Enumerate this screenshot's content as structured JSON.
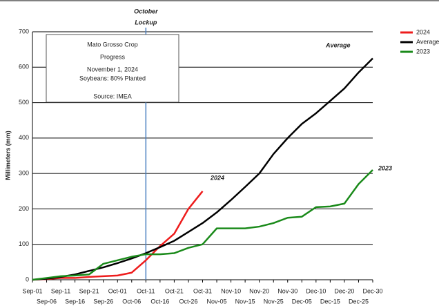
{
  "chart_data": {
    "type": "line",
    "y_label": "Millimeters (mm)",
    "categories": [
      "Sep-01",
      "Sep-06",
      "Sep-11",
      "Sep-16",
      "Sep-21",
      "Sep-26",
      "Oct-01",
      "Oct-06",
      "Oct-11",
      "Oct-16",
      "Oct-21",
      "Oct-26",
      "Oct-31",
      "Nov-05",
      "Nov-10",
      "Nov-15",
      "Nov-20",
      "Nov-25",
      "Nov-30",
      "Dec-05",
      "Dec-10",
      "Dec-15",
      "Dec-20",
      "Dec-25",
      "Dec-30"
    ],
    "series": [
      {
        "name": "2024",
        "color": "#ee1c1c",
        "values": [
          0,
          2,
          5,
          5,
          8,
          10,
          12,
          20,
          55,
          95,
          130,
          200,
          250,
          null,
          null,
          null,
          null,
          null,
          null,
          null,
          null,
          null,
          null,
          null,
          null
        ]
      },
      {
        "name": "Average",
        "color": "#000000",
        "values": [
          0,
          3,
          8,
          15,
          25,
          35,
          47,
          60,
          75,
          92,
          110,
          135,
          160,
          190,
          225,
          262,
          300,
          355,
          400,
          440,
          470,
          505,
          540,
          585,
          625
        ]
      },
      {
        "name": "2023",
        "color": "#1a8a1a",
        "values": [
          0,
          5,
          10,
          12,
          15,
          45,
          55,
          65,
          72,
          72,
          75,
          90,
          100,
          145,
          145,
          145,
          150,
          160,
          175,
          178,
          205,
          207,
          215,
          270,
          310
        ]
      }
    ],
    "ylim": [
      0,
      700
    ],
    "yticks": [
      0,
      100,
      200,
      300,
      400,
      500,
      600,
      700
    ],
    "grid": true,
    "legend": "top-right",
    "annotation": {
      "lines": [
        "October",
        "Lockup"
      ],
      "x": "Oct-11",
      "color": "#1f3fbf",
      "line_color": "#4a7fc1"
    },
    "info_box": {
      "title": [
        "Mato Grosso Crop",
        "Progress"
      ],
      "lines": [
        "November 1, 2024",
        "Soybeans: 80% Planted"
      ],
      "source": "Source: IMEA"
    }
  }
}
